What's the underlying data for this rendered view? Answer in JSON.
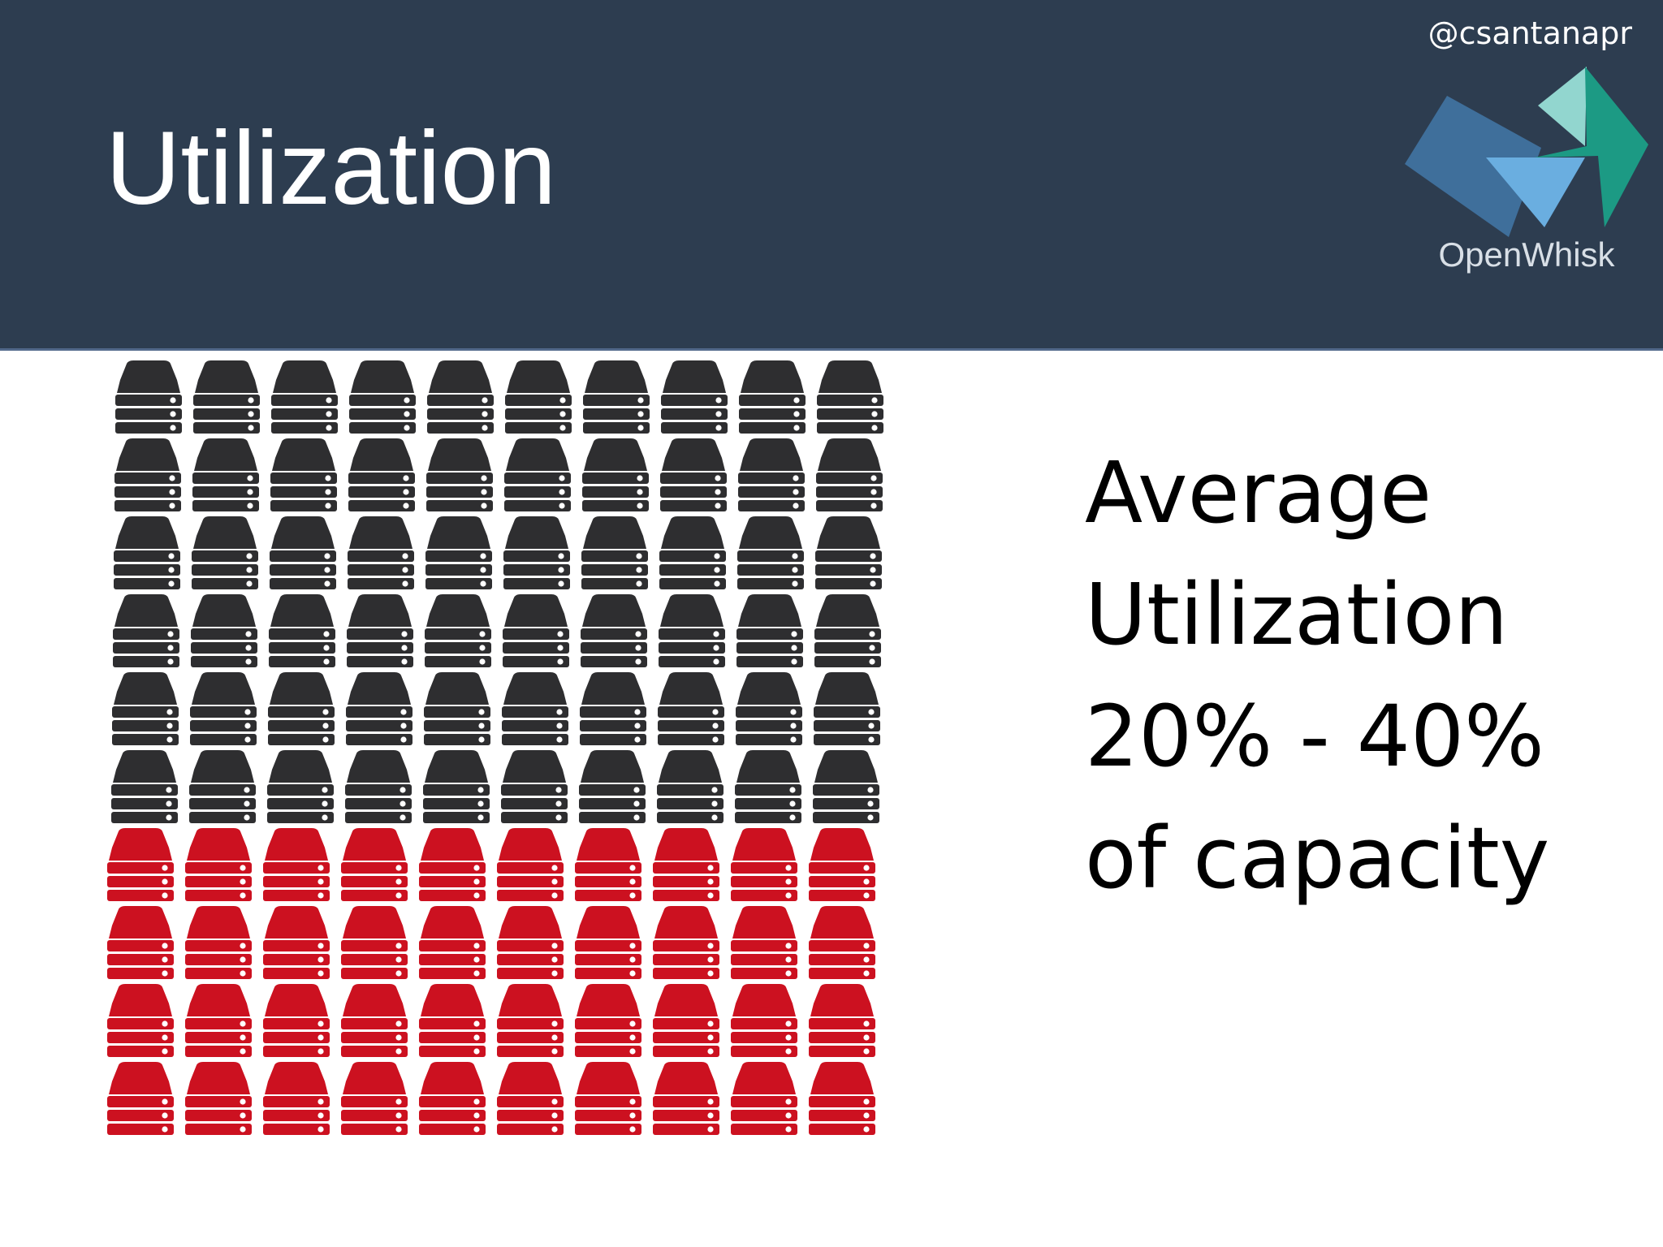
{
  "slide": {
    "title": "Utilization",
    "handle": "@csantanapr",
    "logo_text": "OpenWhisk",
    "caption_lines": [
      "Average",
      "Utilization",
      "20% - 40%",
      "of capacity"
    ]
  },
  "server_grid": {
    "rows": 10,
    "columns": 10,
    "dark_rows": 6,
    "red_rows": 4,
    "colors": {
      "dark": "#2e2e30",
      "red": "#cc1120",
      "slot": "#ffffff"
    }
  },
  "theme": {
    "header_bg": "#2d3d50",
    "logo_colors": [
      "#3f6f9b",
      "#92d6cf",
      "#6aaee0",
      "#1c9a84"
    ]
  }
}
